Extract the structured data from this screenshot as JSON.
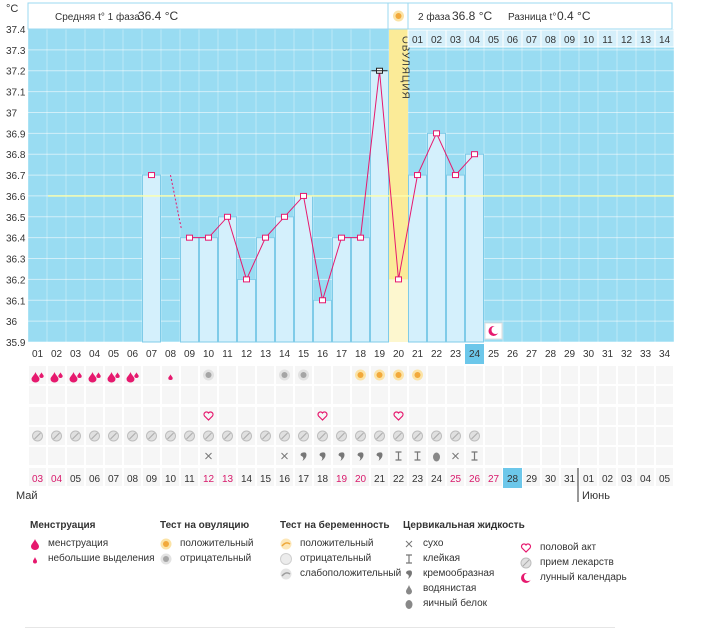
{
  "chart_data": {
    "type": "line",
    "y_unit_label": "°C",
    "ylim": [
      35.9,
      37.4
    ],
    "y_ticks": [
      "35.9",
      "36",
      "36.1",
      "36.2",
      "36.3",
      "36.4",
      "36.5",
      "36.6",
      "36.7",
      "36.8",
      "36.9",
      "37",
      "37.1",
      "37.2",
      "37.3",
      "37.4"
    ],
    "cycle_days": [
      "01",
      "02",
      "03",
      "04",
      "05",
      "06",
      "07",
      "08",
      "09",
      "10",
      "11",
      "12",
      "13",
      "14",
      "15",
      "16",
      "17",
      "18",
      "19",
      "20",
      "21",
      "22",
      "23",
      "24",
      "25",
      "26",
      "27",
      "28",
      "29",
      "30",
      "31",
      "32",
      "33",
      "34"
    ],
    "temperatures": [
      null,
      null,
      null,
      null,
      null,
      null,
      36.7,
      null,
      36.4,
      36.4,
      36.5,
      36.2,
      36.4,
      36.5,
      36.6,
      36.1,
      36.4,
      36.4,
      37.2,
      36.2,
      36.7,
      36.9,
      36.7,
      36.8,
      null,
      null,
      null,
      null,
      null,
      null,
      null,
      null,
      null,
      null
    ],
    "dashed_segment": {
      "from_day": 8,
      "from_temp": 36.7,
      "to_day": 9,
      "to_temp": 36.4
    },
    "coverline": 36.6,
    "current_day": 24,
    "ovulation_day": 20,
    "ovulation_label": "ОВУЛЯЦИЯ",
    "phase1_label": "Средняя t° 1 фаза",
    "phase1_value": "36.4 °C",
    "phase2_label": "2 фаза",
    "phase2_value": "36.8 °C",
    "diff_label": "Разница t°",
    "diff_value": "0.4 °C",
    "phase2_days": [
      "01",
      "02",
      "03",
      "04",
      "05",
      "06",
      "07",
      "08",
      "09",
      "10",
      "11",
      "12",
      "13",
      "14"
    ],
    "lunar_marker_day": 25,
    "calendar_dates": [
      "03",
      "04",
      "05",
      "06",
      "07",
      "08",
      "09",
      "10",
      "11",
      "12",
      "13",
      "14",
      "15",
      "16",
      "17",
      "18",
      "19",
      "20",
      "21",
      "22",
      "23",
      "24",
      "25",
      "26",
      "27",
      "28",
      "29",
      "30",
      "31",
      "01",
      "02",
      "03",
      "04",
      "05"
    ],
    "calendar_highlight_days": [
      1,
      2,
      10,
      11,
      17,
      18,
      23,
      24,
      25
    ],
    "calendar_today_day": 26,
    "month_start": "Май",
    "month_next": "Июнь",
    "month_next_day": 30,
    "rows": {
      "menstruation": [
        2,
        2,
        2,
        2,
        2,
        2,
        0,
        1,
        0,
        0,
        0,
        0,
        0,
        0,
        0,
        0,
        0,
        0,
        0,
        0,
        0,
        0,
        0,
        0,
        0,
        0,
        0,
        0,
        0,
        0,
        0,
        0,
        0,
        0
      ],
      "ovulation_test": [
        0,
        0,
        0,
        0,
        0,
        0,
        0,
        0,
        0,
        2,
        0,
        0,
        0,
        2,
        2,
        0,
        0,
        1,
        1,
        1,
        1,
        0,
        0,
        0,
        0,
        0,
        0,
        0,
        0,
        0,
        0,
        0,
        0,
        0
      ],
      "intercourse_days": [
        10,
        16,
        20
      ],
      "pills_days": [
        1,
        2,
        3,
        4,
        5,
        6,
        7,
        8,
        9,
        10,
        11,
        12,
        13,
        14,
        15,
        16,
        17,
        18,
        19,
        20,
        21,
        22,
        23,
        24
      ],
      "cervical": [
        0,
        0,
        0,
        0,
        0,
        0,
        0,
        0,
        0,
        "dry",
        0,
        0,
        0,
        "dry",
        "creamy",
        "creamy",
        "creamy",
        "creamy",
        "creamy",
        "sticky",
        "sticky",
        "eggwhite",
        "dry",
        "sticky",
        0,
        0,
        0,
        0,
        0,
        0,
        0,
        0,
        0,
        0
      ]
    }
  },
  "legend": {
    "menstruation": {
      "title": "Менструация",
      "items": [
        "менструация",
        "небольшие выделения"
      ]
    },
    "ovulation_test": {
      "title": "Тест на овуляцию",
      "items": [
        "положительный",
        "отрицательный"
      ]
    },
    "pregnancy_test": {
      "title": "Тест на беременность",
      "items": [
        "положительный",
        "отрицательный",
        "слабоположительный"
      ]
    },
    "cervical": {
      "title": "Цервикальная жидкость",
      "items": [
        "сухо",
        "клейкая",
        "кремообразная",
        "водянистая",
        "яичный белок"
      ]
    },
    "other": {
      "items": [
        "половой акт",
        "прием лекарств",
        "лунный календарь"
      ]
    }
  },
  "colors": {
    "bg_blue": "#99dcf2",
    "bar_fill": "#d4f0fc",
    "bar_stroke": "#7fcbe8",
    "line": "#e6196e",
    "coverline": "#ffffaa",
    "ovulation": "#fbeb98",
    "ovulation_light": "#fdf7cf",
    "today": "#6cc7ea",
    "header_bg": "#e8f6fc",
    "pink_text": "#d8196b"
  }
}
